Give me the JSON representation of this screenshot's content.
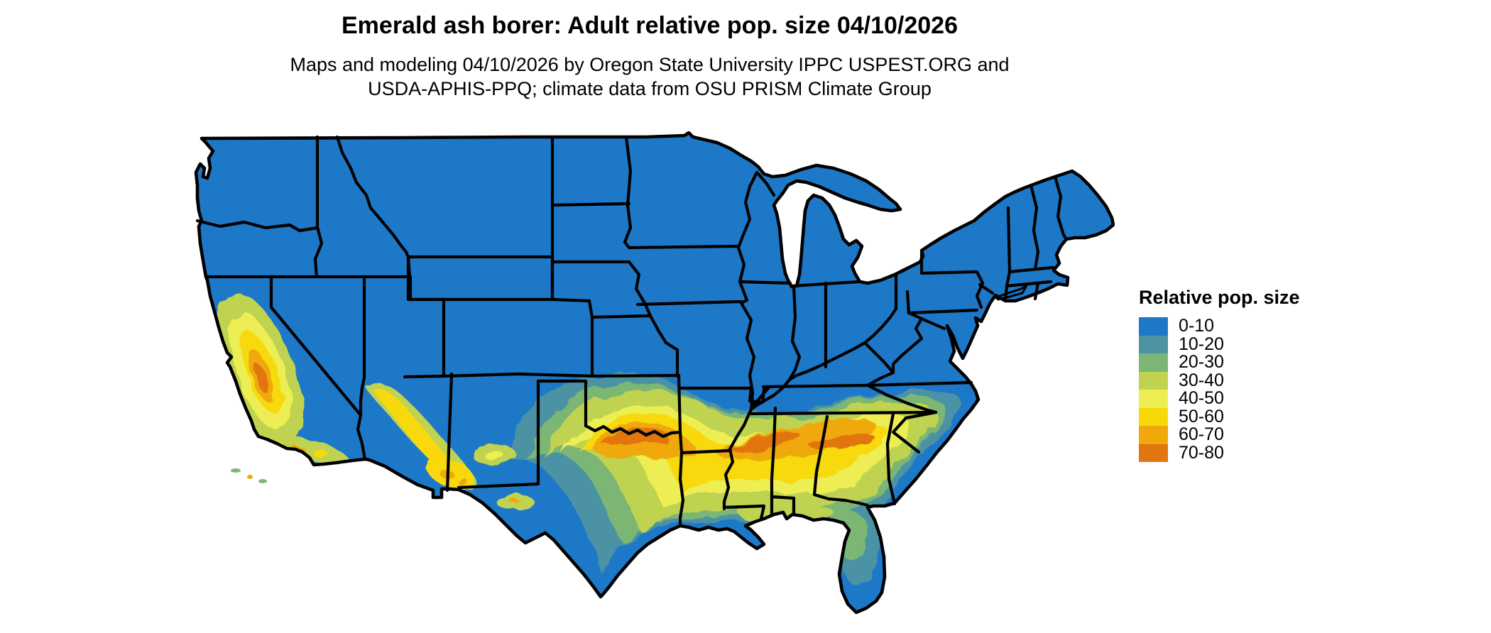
{
  "title": "Emerald ash borer: Adult relative pop. size 04/10/2026",
  "subtitle": {
    "line1": "Maps and modeling 04/10/2026 by Oregon State University IPPC USPEST.ORG and",
    "line2": "USDA-APHIS-PPQ; climate data from OSU PRISM Climate Group"
  },
  "legend": {
    "title": "Relative pop. size",
    "entries": [
      {
        "label": "0-10",
        "color": "#1E78C8"
      },
      {
        "label": "10-20",
        "color": "#4C93A4"
      },
      {
        "label": "20-30",
        "color": "#7CB674"
      },
      {
        "label": "30-40",
        "color": "#C0D351"
      },
      {
        "label": "40-50",
        "color": "#EDEE52"
      },
      {
        "label": "50-60",
        "color": "#F7D907"
      },
      {
        "label": "60-70",
        "color": "#EFA90B"
      },
      {
        "label": "70-80",
        "color": "#E2750F"
      }
    ]
  },
  "map": {
    "region": "Continental United States",
    "water_color": "#FFFFFF",
    "border_color": "#000000"
  }
}
